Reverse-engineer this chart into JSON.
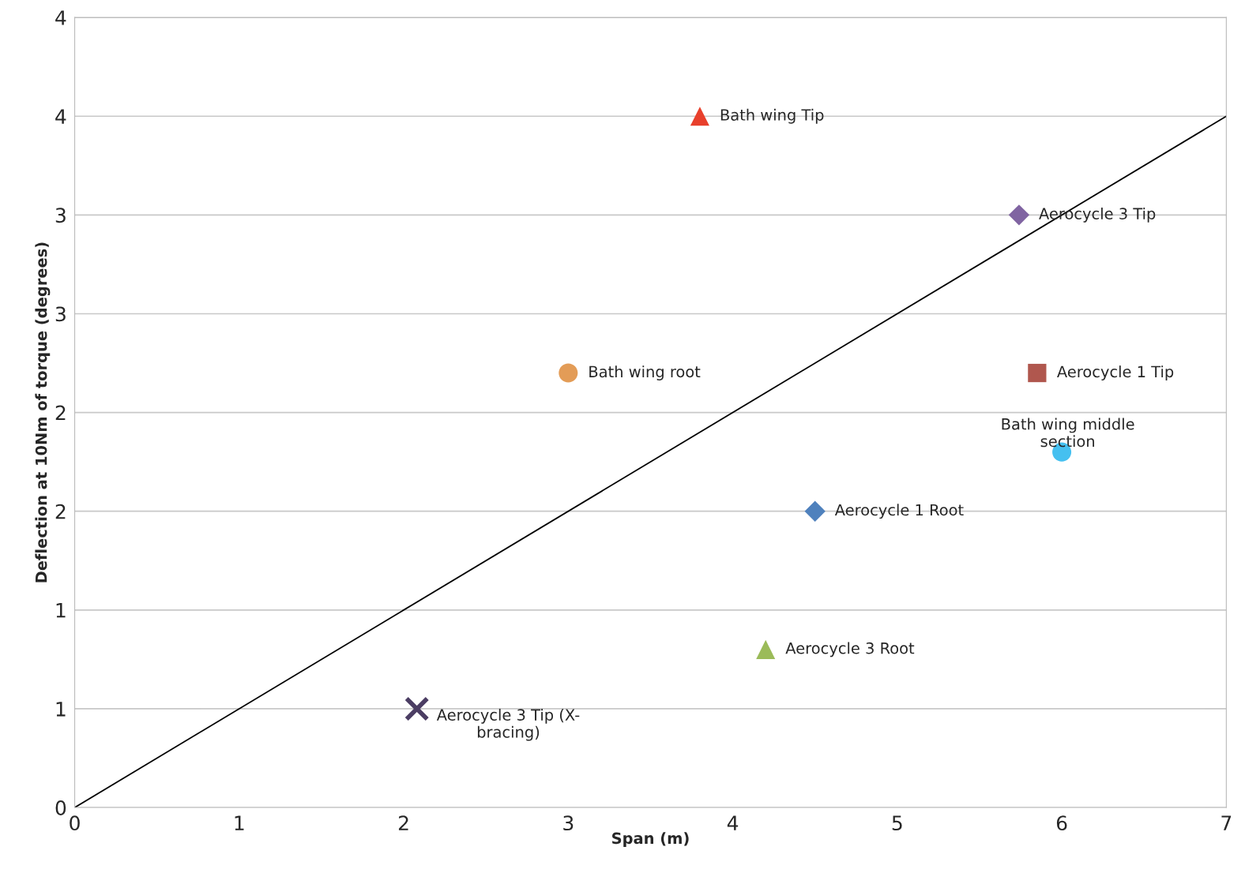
{
  "chart_data": {
    "type": "scatter",
    "xlabel": "Span (m)",
    "ylabel": "Deflection at 10Nm of torque (degrees)",
    "xlim": [
      0,
      7
    ],
    "ylim": [
      0,
      4
    ],
    "xticks": [
      0,
      1,
      2,
      3,
      4,
      5,
      6,
      7
    ],
    "yticks": [
      0,
      {
        "value": 0.5,
        "label": "1"
      },
      1,
      {
        "value": 1.5,
        "label": "2"
      },
      2,
      {
        "value": 2.5,
        "label": "3"
      },
      3,
      {
        "value": 3.5,
        "label": "4"
      },
      4
    ],
    "grid": "y",
    "legend": false,
    "series": [
      {
        "name": "Bath wing Tip",
        "color": "#e8402c",
        "marker": "triangle",
        "x": [
          3.8
        ],
        "values": [
          3.5
        ]
      },
      {
        "name": "Aerocycle 3 Tip",
        "color": "#8064a2",
        "marker": "diamond",
        "x": [
          5.74
        ],
        "values": [
          3.0
        ]
      },
      {
        "name": "Bath wing root",
        "color": "#e39c57",
        "marker": "circle",
        "x": [
          3.0
        ],
        "values": [
          2.2
        ]
      },
      {
        "name": "Aerocycle 1 Tip",
        "color": "#b0574e",
        "marker": "square",
        "x": [
          5.85
        ],
        "values": [
          2.2
        ]
      },
      {
        "name": "Bath wing middle\nsection",
        "color": "#45c0f0",
        "marker": "circle",
        "x": [
          6.0
        ],
        "values": [
          1.8
        ]
      },
      {
        "name": "Aerocycle 1 Root",
        "color": "#4f81bd",
        "marker": "diamond",
        "x": [
          4.5
        ],
        "values": [
          1.5
        ]
      },
      {
        "name": "Aerocycle 3 Root",
        "color": "#9bbb59",
        "marker": "triangle",
        "x": [
          4.2
        ],
        "values": [
          0.8
        ]
      },
      {
        "name": "Aerocycle 3 Tip (X-\nbracing)",
        "color": "#4b3d63",
        "marker": "cross",
        "x": [
          2.08
        ],
        "values": [
          0.5
        ]
      },
      {
        "type": "line",
        "color": "#000000",
        "marker": "none",
        "x": [
          0,
          7
        ],
        "values": [
          0,
          3.5
        ]
      }
    ]
  }
}
